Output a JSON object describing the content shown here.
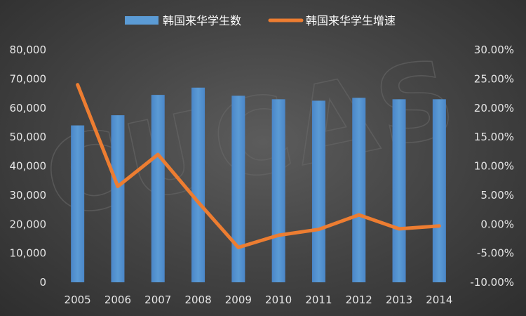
{
  "chart_data": {
    "type": "bar",
    "categories": [
      "2005",
      "2006",
      "2007",
      "2008",
      "2009",
      "2010",
      "2011",
      "2012",
      "2013",
      "2014"
    ],
    "series": [
      {
        "name": "韩国来华学生数",
        "type": "bar",
        "axis": "left",
        "color": "#5b9bd5",
        "values": [
          54000,
          57500,
          64500,
          67000,
          64200,
          63000,
          62500,
          63500,
          63000,
          63000
        ]
      },
      {
        "name": "韩国来华学生增速",
        "type": "line",
        "axis": "right",
        "color": "#ed7d31",
        "values": [
          24.0,
          6.5,
          12.0,
          3.8,
          -4.0,
          -1.9,
          -0.9,
          1.6,
          -0.8,
          -0.3
        ]
      }
    ],
    "y_left": {
      "ylim": [
        0,
        80000
      ],
      "ticks": [
        0,
        10000,
        20000,
        30000,
        40000,
        50000,
        60000,
        70000,
        80000
      ],
      "tick_labels": [
        "0",
        "10,000",
        "20,000",
        "30,000",
        "40,000",
        "50,000",
        "60,000",
        "70,000",
        "80,000"
      ]
    },
    "y_right": {
      "ylim": [
        -10,
        30
      ],
      "ticks": [
        -10,
        -5,
        0,
        5,
        10,
        15,
        20,
        25,
        30
      ],
      "tick_labels": [
        "-10.00%",
        "-5.00%",
        "0.00%",
        "5.00%",
        "10.00%",
        "15.00%",
        "20.00%",
        "25.00%",
        "30.00%"
      ]
    },
    "grid": false,
    "legend_position": "top-center",
    "background_color": "#404040",
    "text_color": "#e6e6e6",
    "watermark": "CUCAS"
  }
}
